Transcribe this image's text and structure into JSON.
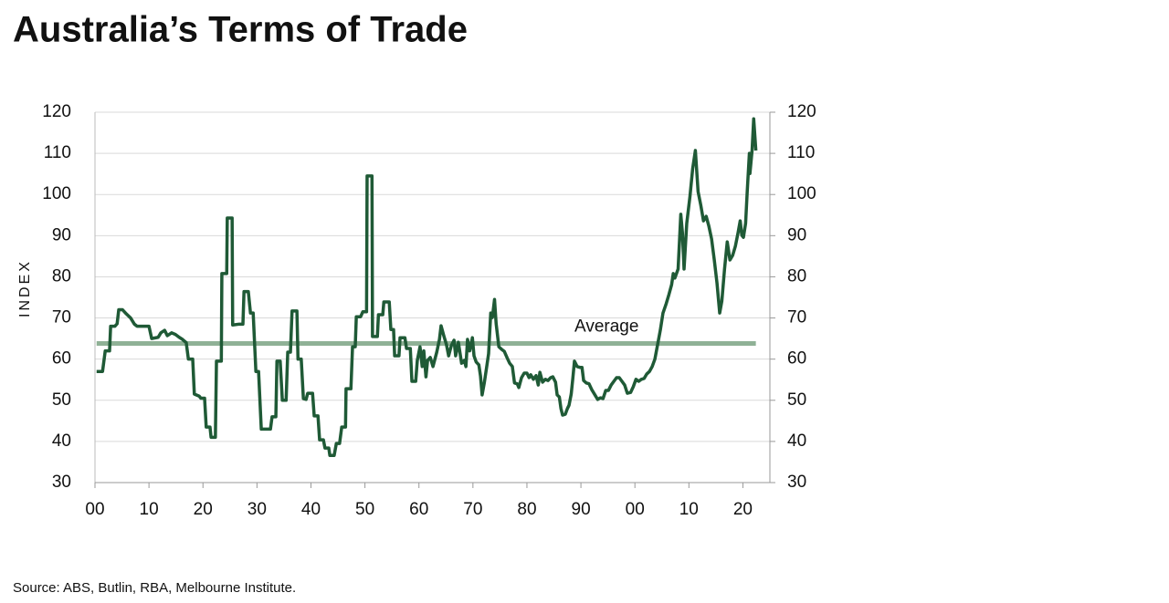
{
  "chart_data": {
    "type": "line",
    "title": "Australia’s Terms of Trade",
    "y_label": "INDEX",
    "source": "Source: ABS, Butlin, RBA, Melbourne Institute.",
    "color": "#1f5a36",
    "grid": true,
    "xlim": [
      1900,
      2025
    ],
    "ylim": [
      30,
      120
    ],
    "y2lim": [
      30,
      120
    ],
    "xticks": [
      {
        "value": 1900,
        "label": "00"
      },
      {
        "value": 1910,
        "label": "10"
      },
      {
        "value": 1920,
        "label": "20"
      },
      {
        "value": 1930,
        "label": "30"
      },
      {
        "value": 1940,
        "label": "40"
      },
      {
        "value": 1950,
        "label": "50"
      },
      {
        "value": 1960,
        "label": "60"
      },
      {
        "value": 1970,
        "label": "70"
      },
      {
        "value": 1980,
        "label": "80"
      },
      {
        "value": 1990,
        "label": "90"
      },
      {
        "value": 2000,
        "label": "00"
      },
      {
        "value": 2010,
        "label": "10"
      },
      {
        "value": 2020,
        "label": "20"
      }
    ],
    "yticks": [
      30,
      40,
      50,
      60,
      70,
      80,
      90,
      100,
      110,
      120
    ],
    "y2ticks": [
      30,
      40,
      50,
      60,
      70,
      80,
      90,
      100,
      110,
      120
    ],
    "average": {
      "value": 63.8,
      "label": "Average",
      "color": "#8fb196"
    },
    "x": [
      1900.3,
      1901.4,
      1901.9,
      1902.7,
      1902.9,
      1903.7,
      1904.1,
      1904.4,
      1905.1,
      1905.8,
      1906.6,
      1907.3,
      1907.8,
      1909.1,
      1910,
      1910.5,
      1911.7,
      1912.2,
      1912.9,
      1913.4,
      1914.2,
      1914.9,
      1915.6,
      1916.2,
      1916.9,
      1917.3,
      1918.1,
      1918.4,
      1919.3,
      1919.6,
      1920.3,
      1920.6,
      1921.3,
      1921.5,
      1922.3,
      1922.5,
      1923.4,
      1923.5,
      1924.4,
      1924.5,
      1925.4,
      1925.5,
      1926.7,
      1927.4,
      1927.6,
      1928.4,
      1928.8,
      1929.3,
      1929.8,
      1930.3,
      1930.8,
      1932.5,
      1932.8,
      1933.5,
      1933.7,
      1934.3,
      1934.7,
      1935.4,
      1935.7,
      1936.2,
      1936.5,
      1937.4,
      1937.6,
      1938.2,
      1938.6,
      1939.1,
      1939.4,
      1940.3,
      1940.6,
      1941.3,
      1941.6,
      1942.3,
      1942.6,
      1943.3,
      1943.5,
      1944.3,
      1944.7,
      1945.3,
      1945.7,
      1946.4,
      1946.5,
      1947.4,
      1947.7,
      1948.2,
      1948.4,
      1949.2,
      1949.6,
      1950.3,
      1950.4,
      1951.3,
      1951.4,
      1952.3,
      1952.5,
      1953.3,
      1953.5,
      1954.5,
      1954.8,
      1955.3,
      1955.5,
      1956.3,
      1956.5,
      1957.4,
      1957.7,
      1958.4,
      1958.7,
      1959.4,
      1959.7,
      1960.2,
      1960.6,
      1960.9,
      1961.3,
      1961.6,
      1962.1,
      1962.6,
      1963.3,
      1963.8,
      1964.1,
      1964.6,
      1965.1,
      1965.5,
      1966,
      1966.5,
      1966.8,
      1967.3,
      1967.9,
      1968.4,
      1968.7,
      1969,
      1969.4,
      1969.9,
      1970.2,
      1970.6,
      1971.1,
      1971.4,
      1971.7,
      1972.1,
      1972.6,
      1972.9,
      1973.3,
      1973.6,
      1974,
      1974.3,
      1974.8,
      1975.3,
      1975.8,
      1976.3,
      1976.8,
      1977.3,
      1977.7,
      1978.2,
      1978.5,
      1979,
      1979.5,
      1980,
      1980.4,
      1980.7,
      1981.2,
      1981.7,
      1982.1,
      1982.4,
      1982.9,
      1983.4,
      1983.9,
      1984.4,
      1984.8,
      1985.3,
      1985.6,
      1986,
      1986.3,
      1986.6,
      1987.1,
      1987.5,
      1987.8,
      1988.2,
      1988.5,
      1988.8,
      1989.3,
      1989.8,
      1990.2,
      1990.5,
      1991,
      1991.5,
      1992,
      1992.6,
      1993.1,
      1993.6,
      1994.1,
      1994.6,
      1995.1,
      1995.6,
      1996.1,
      1996.6,
      1997.1,
      1997.6,
      1998.1,
      1998.6,
      1999.2,
      1999.7,
      2000.2,
      2000.7,
      2001.2,
      2001.7,
      2002.2,
      2002.7,
      2003.2,
      2003.7,
      2004.2,
      2004.7,
      2005.2,
      2005.8,
      2006.3,
      2006.8,
      2007.1,
      2007.4,
      2008,
      2008.5,
      2008.8,
      2009.1,
      2009.6,
      2010.2,
      2010.7,
      2011.2,
      2011.7,
      2012.2,
      2012.7,
      2013.2,
      2013.7,
      2014.2,
      2014.7,
      2015.2,
      2015.7,
      2016.1,
      2016.6,
      2017.1,
      2017.6,
      2018.1,
      2018.6,
      2019.1,
      2019.5,
      2019.8,
      2020.1,
      2020.5,
      2020.8,
      2021.2,
      2021.3,
      2021.7,
      2022,
      2022.4
    ],
    "values": [
      57,
      57,
      62,
      62,
      68,
      68,
      68.6,
      72,
      72,
      71,
      70,
      68.5,
      68,
      68,
      68,
      65,
      65.3,
      66.4,
      67,
      65.7,
      66.4,
      66,
      65.3,
      64.8,
      64,
      60,
      60,
      51.5,
      51,
      50.5,
      50.5,
      43.5,
      43.5,
      41,
      41,
      59.5,
      59.5,
      80.8,
      80.8,
      94.3,
      94.3,
      68.3,
      68.5,
      68.5,
      76.4,
      76.4,
      71.2,
      71.2,
      57,
      57,
      43,
      43,
      46,
      46,
      59.5,
      59.5,
      50,
      50,
      61.7,
      61.7,
      71.7,
      71.7,
      60,
      60,
      50.4,
      50.2,
      51.7,
      51.7,
      46.2,
      46.2,
      40.4,
      40.4,
      38.4,
      38.4,
      36.6,
      36.6,
      39.5,
      39.5,
      43.5,
      43.5,
      52.8,
      52.8,
      63,
      63,
      70.3,
      70.3,
      71.5,
      71.5,
      104.5,
      104.5,
      65.5,
      65.5,
      70.8,
      70.8,
      73.9,
      73.9,
      67.2,
      67.2,
      60.8,
      60.8,
      65.2,
      65.2,
      62.6,
      62.6,
      54.6,
      54.6,
      59.7,
      63,
      58.2,
      62,
      55.7,
      59.7,
      60.4,
      58.2,
      61.7,
      64.8,
      68.1,
      65.7,
      63.5,
      60.8,
      63.3,
      64.6,
      60.8,
      64.1,
      59,
      59.7,
      58.2,
      64.8,
      62,
      65.2,
      60.8,
      59.3,
      58.6,
      55.9,
      51.3,
      54.2,
      58.6,
      61.3,
      71.2,
      70.1,
      74.5,
      68.6,
      63,
      62.4,
      61.9,
      60.4,
      59,
      58.2,
      54.2,
      54,
      53.1,
      55.5,
      56.6,
      56.6,
      55.5,
      56.2,
      55.1,
      56,
      53.7,
      56.8,
      54.4,
      55.1,
      54.8,
      55.5,
      55.7,
      54.4,
      51.3,
      50.8,
      48,
      46.4,
      46.6,
      48,
      48.8,
      51.5,
      55.3,
      59.5,
      58.2,
      58,
      58,
      54.8,
      54.2,
      54,
      52.6,
      51.3,
      50.2,
      50.6,
      50.4,
      52.4,
      52.4,
      53.7,
      54.6,
      55.5,
      55.5,
      54.6,
      53.7,
      51.7,
      51.9,
      53.3,
      55.1,
      54.6,
      55.1,
      55.3,
      56.4,
      57,
      58.2,
      60,
      63.5,
      67,
      71.2,
      73.5,
      75.7,
      78.1,
      80.8,
      79.7,
      81.9,
      95.2,
      90.7,
      81.9,
      93,
      99.6,
      106.3,
      110.7,
      100.7,
      97.4,
      93.6,
      94.7,
      92.3,
      89.2,
      84.1,
      78.5,
      71.2,
      74.1,
      81.9,
      88.5,
      84.1,
      85.2,
      87.4,
      90.7,
      93.6,
      90.1,
      89.6,
      93,
      100.7,
      110,
      105.1,
      110.7,
      118.4,
      110.7
    ]
  }
}
